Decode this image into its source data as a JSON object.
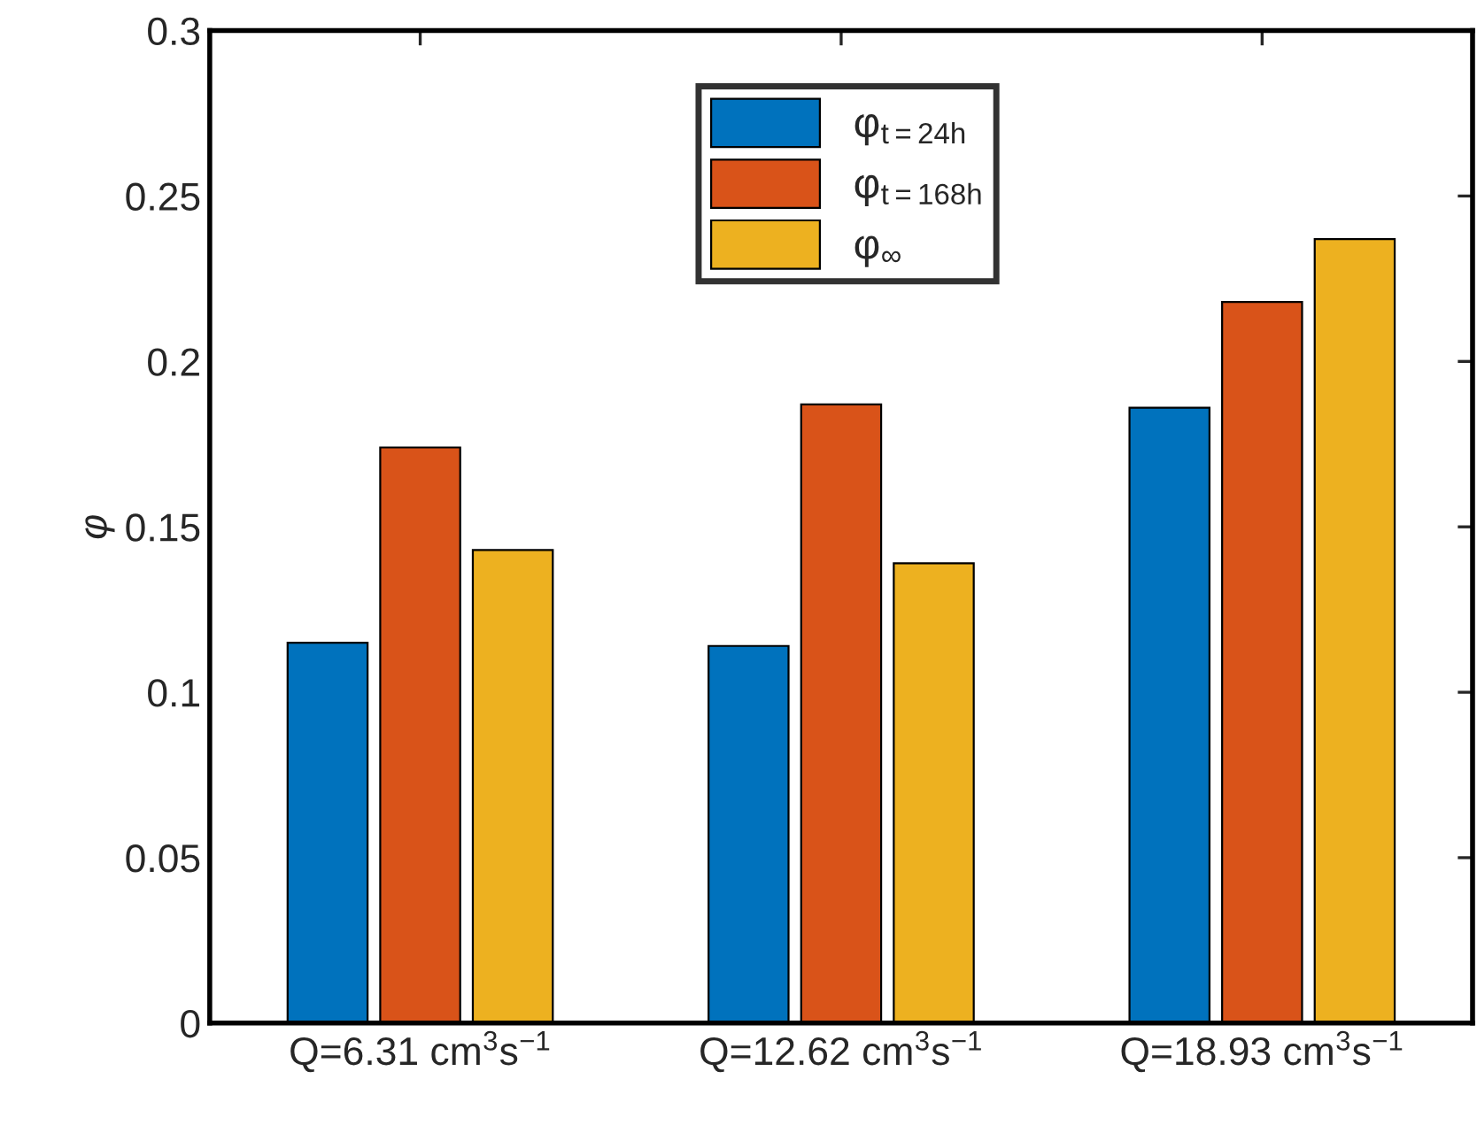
{
  "chart_data": {
    "type": "bar",
    "categories": [
      "Q=6.31 cm$^{3}$s$^{−1}$",
      "Q=12.62 cm$^{3}$s$^{−1}$",
      "Q=18.93 cm$^{3}$s$^{−1}$"
    ],
    "ylabel": "φ",
    "series": [
      {
        "name": "φ$_{t=24h}$",
        "color": "#0072bd",
        "values": [
          0.115,
          0.114,
          0.186
        ]
      },
      {
        "name": "φ$_{t=168h}$",
        "color": "#d95319",
        "values": [
          0.174,
          0.187,
          0.218
        ]
      },
      {
        "name": "φ$_{∞}$",
        "color": "#edb120",
        "values": [
          0.143,
          0.139,
          0.237
        ]
      }
    ],
    "ylim": [
      0,
      0.3
    ],
    "yticks": [
      0,
      0.05,
      0.1,
      0.15,
      0.2,
      0.25,
      0.3
    ],
    "grid": false,
    "legend": "top"
  }
}
